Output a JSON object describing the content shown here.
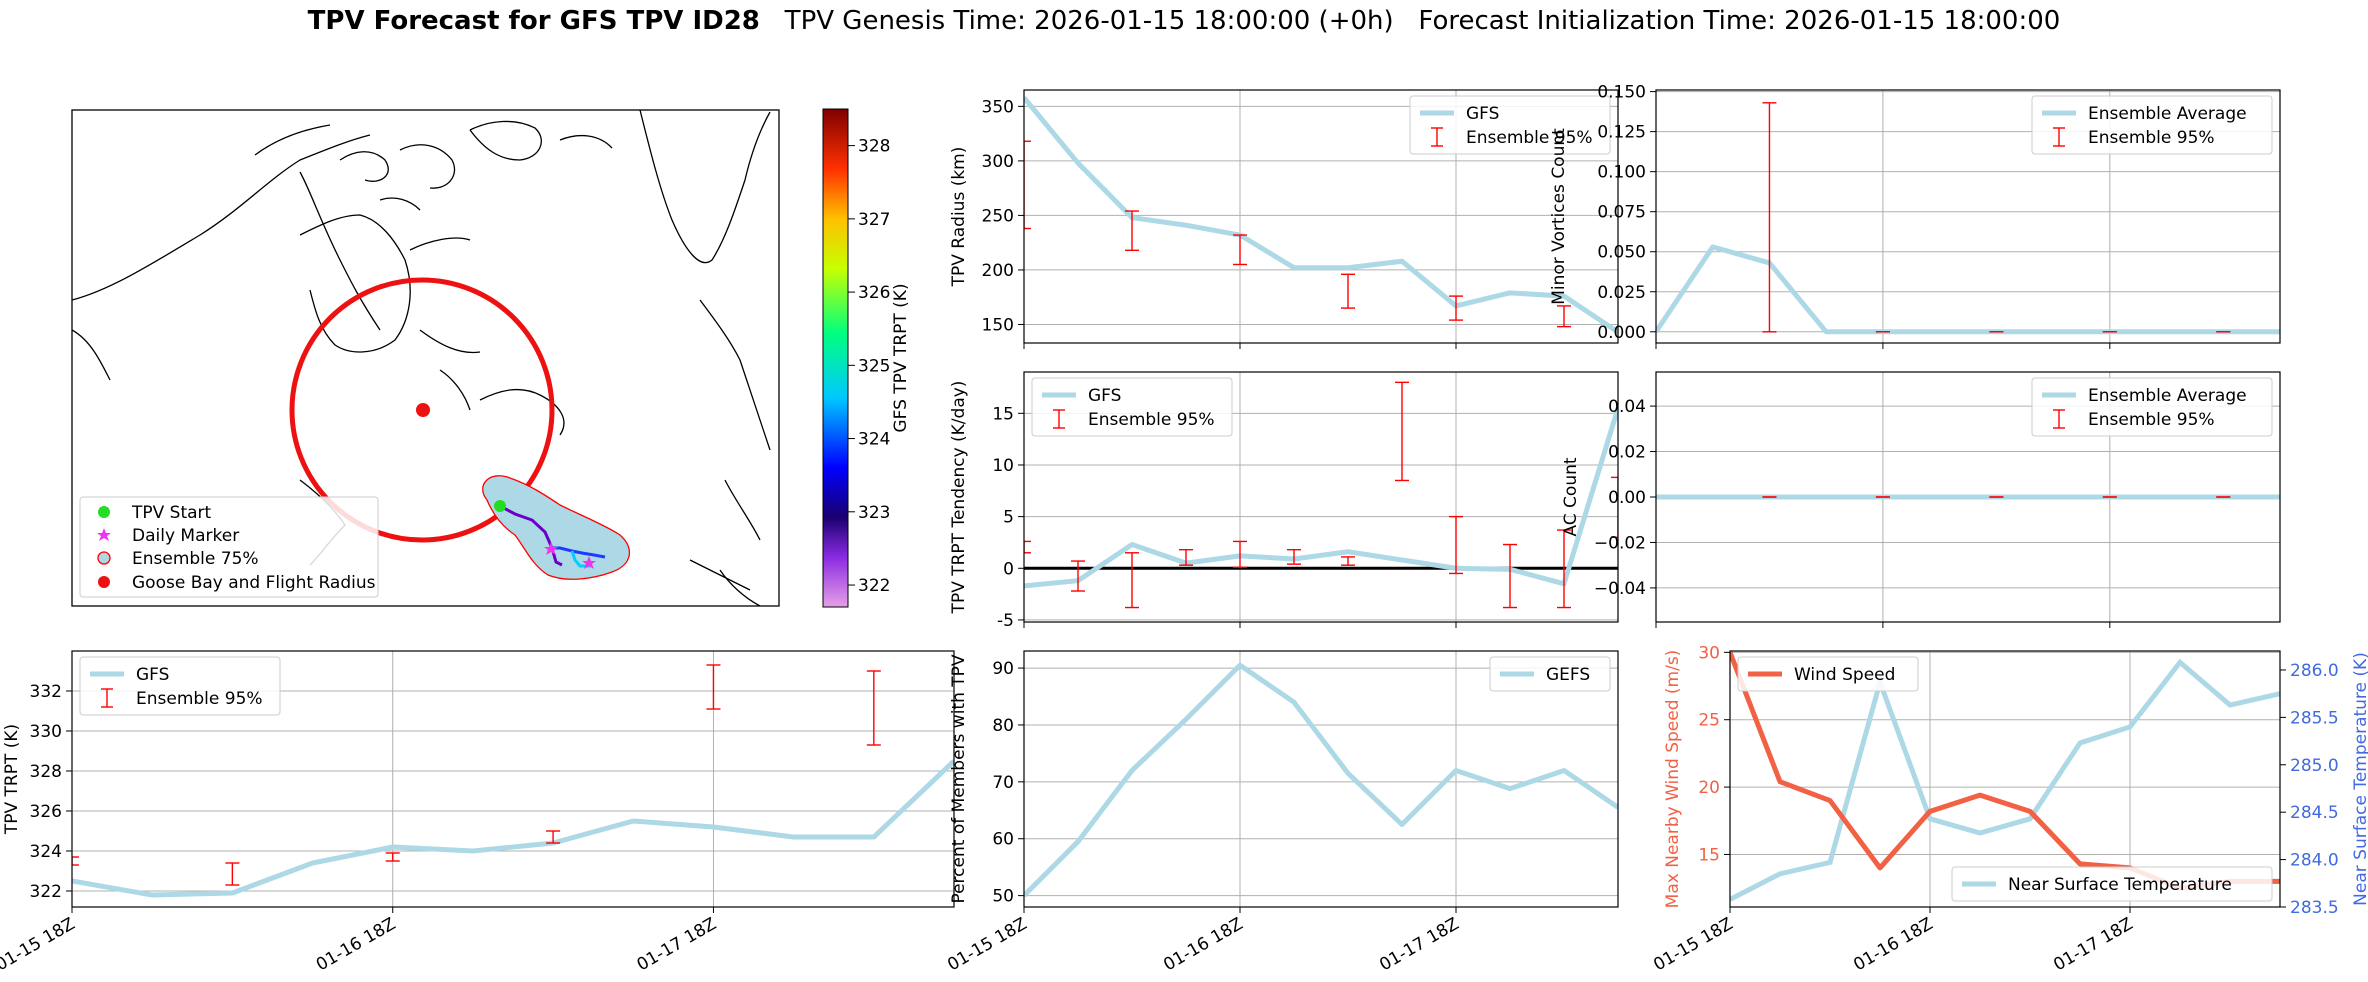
{
  "figure": {
    "title_bold": "TPV Forecast for GFS TPV ID28",
    "title_rest": "   TPV Genesis Time: 2026-01-15 18:00:00 (+0h)   Forecast Initialization Time: 2026-01-15 18:00:00"
  },
  "colors": {
    "gfs_line": "#add8e6",
    "error_bar": "#ff0000",
    "wind_line": "#f26144",
    "temp_axis": "#4169e1",
    "map_circle": "#ee1111"
  },
  "x_ticks": [
    "01-15 18Z",
    "01-16 18Z",
    "01-17 18Z"
  ],
  "map": {
    "legend": [
      "TPV Start",
      "Daily Marker",
      "Ensemble 75%",
      "Goose Bay and Flight Radius"
    ],
    "colorbar": {
      "label": "GFS TPV TRPT (K)",
      "ticks": [
        322,
        323,
        324,
        325,
        326,
        327,
        328
      ],
      "range": [
        321.7,
        328.5
      ]
    }
  },
  "chart_data": [
    {
      "id": "trpt",
      "type": "line",
      "ylabel": "TPV TRPT (K)",
      "ylim": [
        321.2,
        334.0
      ],
      "yticks": [
        322,
        324,
        326,
        328,
        330,
        332
      ],
      "xlim": [
        0,
        66
      ],
      "legend": [
        "GFS",
        "Ensemble 95%"
      ],
      "legend_position": "upper-left",
      "x": [
        0,
        6,
        12,
        18,
        24,
        30,
        36,
        42,
        48,
        54,
        60,
        66
      ],
      "values": [
        322.5,
        321.8,
        321.9,
        323.4,
        324.2,
        324.0,
        324.4,
        325.5,
        325.2,
        324.7,
        324.7,
        328.5
      ],
      "errorbars": [
        {
          "x": 0,
          "low": 323.3,
          "high": 323.7
        },
        {
          "x": 12,
          "low": 322.3,
          "high": 323.4
        },
        {
          "x": 24,
          "low": 323.5,
          "high": 323.9
        },
        {
          "x": 36,
          "low": 324.4,
          "high": 325.0
        },
        {
          "x": 48,
          "low": 331.1,
          "high": 333.3
        },
        {
          "x": 60,
          "low": 329.3,
          "high": 333.0
        }
      ]
    },
    {
      "id": "radius",
      "type": "line",
      "ylabel": "TPV Radius (km)",
      "ylim": [
        133,
        365
      ],
      "yticks": [
        150,
        200,
        250,
        300,
        350
      ],
      "xlim": [
        0,
        66
      ],
      "legend": [
        "GFS",
        "Ensemble 95%"
      ],
      "legend_position": "upper-right",
      "x": [
        0,
        6,
        12,
        18,
        24,
        30,
        36,
        42,
        48,
        54,
        60,
        66
      ],
      "values": [
        358,
        298,
        248,
        241,
        232,
        202,
        202,
        208,
        167,
        179,
        176,
        143
      ],
      "errorbars": [
        {
          "x": 0,
          "low": 238,
          "high": 318
        },
        {
          "x": 12,
          "low": 218,
          "high": 254
        },
        {
          "x": 24,
          "low": 205,
          "high": 232
        },
        {
          "x": 36,
          "low": 165,
          "high": 196
        },
        {
          "x": 48,
          "low": 154,
          "high": 176
        },
        {
          "x": 60,
          "low": 148,
          "high": 167
        }
      ]
    },
    {
      "id": "tendency",
      "type": "line",
      "ylabel": "TPV TRPT Tendency (K/day)",
      "ylim": [
        -5.2,
        19.0
      ],
      "yticks": [
        -5,
        0,
        5,
        10,
        15
      ],
      "xlim": [
        0,
        66
      ],
      "legend": [
        "GFS",
        "Ensemble 95%"
      ],
      "legend_position": "upper-left",
      "zero_line": true,
      "x": [
        0,
        6,
        12,
        18,
        24,
        30,
        36,
        42,
        48,
        54,
        60,
        66
      ],
      "values": [
        -1.7,
        -1.2,
        2.3,
        0.5,
        1.2,
        0.9,
        1.6,
        0.8,
        0.0,
        -0.1,
        -1.5,
        15.5
      ],
      "errorbars": [
        {
          "x": 0,
          "low": 1.5,
          "high": 2.6
        },
        {
          "x": 6,
          "low": -2.2,
          "high": 0.7
        },
        {
          "x": 12,
          "low": -3.8,
          "high": 1.5
        },
        {
          "x": 18,
          "low": 0.3,
          "high": 1.8
        },
        {
          "x": 24,
          "low": 0.1,
          "high": 2.6
        },
        {
          "x": 30,
          "low": 0.4,
          "high": 1.8
        },
        {
          "x": 36,
          "low": 0.3,
          "high": 1.1
        },
        {
          "x": 42,
          "low": 8.5,
          "high": 18.0
        },
        {
          "x": 48,
          "low": -0.5,
          "high": 5.0
        },
        {
          "x": 54,
          "low": -3.8,
          "high": 2.3
        },
        {
          "x": 60,
          "low": -3.8,
          "high": 3.7
        },
        {
          "x": 66,
          "low": 3.0,
          "high": 8.8
        }
      ]
    },
    {
      "id": "members",
      "type": "line",
      "ylabel": "Percent of Members with TPV",
      "ylim": [
        48,
        93
      ],
      "yticks": [
        50,
        60,
        70,
        80,
        90
      ],
      "xlim": [
        0,
        66
      ],
      "legend": [
        "GEFS"
      ],
      "legend_position": "upper-right",
      "x": [
        0,
        6,
        12,
        18,
        24,
        30,
        36,
        42,
        48,
        54,
        60,
        66
      ],
      "values": [
        50,
        59.5,
        72,
        81,
        90.5,
        84,
        71.5,
        62.5,
        72,
        68.8,
        72,
        65.5
      ],
      "errorbars": []
    },
    {
      "id": "minor",
      "type": "line",
      "ylabel": "Minor Vortices Count",
      "ylim": [
        -0.007,
        0.151
      ],
      "yticks": [
        0.0,
        0.025,
        0.05,
        0.075,
        0.1,
        0.125,
        0.15
      ],
      "ytick_labels": [
        "0.000",
        "0.025",
        "0.050",
        "0.075",
        "0.100",
        "0.125",
        "0.150"
      ],
      "xlim": [
        0,
        66
      ],
      "legend": [
        "Ensemble Average",
        "Ensemble 95%"
      ],
      "legend_position": "upper-right",
      "x": [
        0,
        6,
        12,
        18,
        24,
        30,
        36,
        42,
        48,
        54,
        60,
        66
      ],
      "values": [
        0.0,
        0.053,
        0.043,
        0.0,
        0.0,
        0.0,
        0.0,
        0.0,
        0.0,
        0.0,
        0.0,
        0.0
      ],
      "errorbars": [
        {
          "x": 12,
          "low": 0.0,
          "high": 0.143
        },
        {
          "x": 24,
          "low": 0.0,
          "high": 0.0
        },
        {
          "x": 36,
          "low": 0.0,
          "high": 0.0
        },
        {
          "x": 48,
          "low": 0.0,
          "high": 0.0
        },
        {
          "x": 60,
          "low": 0.0,
          "high": 0.0
        }
      ]
    },
    {
      "id": "ac",
      "type": "line",
      "ylabel": "AC Count",
      "ylim": [
        -0.055,
        0.055
      ],
      "yticks": [
        -0.04,
        -0.02,
        0.0,
        0.02,
        0.04
      ],
      "ytick_labels": [
        "−0.04",
        "−0.02",
        "0.00",
        "0.02",
        "0.04"
      ],
      "xlim": [
        0,
        66
      ],
      "legend": [
        "Ensemble Average",
        "Ensemble 95%"
      ],
      "legend_position": "upper-right",
      "x": [
        0,
        6,
        12,
        18,
        24,
        30,
        36,
        42,
        48,
        54,
        60,
        66
      ],
      "values": [
        0,
        0,
        0,
        0,
        0,
        0,
        0,
        0,
        0,
        0,
        0,
        0
      ],
      "errorbars": [
        {
          "x": 12,
          "low": 0,
          "high": 0
        },
        {
          "x": 24,
          "low": 0,
          "high": 0
        },
        {
          "x": 36,
          "low": 0,
          "high": 0
        },
        {
          "x": 48,
          "low": 0,
          "high": 0
        },
        {
          "x": 60,
          "low": 0,
          "high": 0
        }
      ]
    },
    {
      "id": "wind_temp",
      "type": "line",
      "ylabel": "Max Nearby Wind Speed (m/s)",
      "ylabel_right": "Near Surface Temperature (K)",
      "ylim": [
        11.1,
        30.1
      ],
      "yticks": [
        15,
        20,
        25,
        30
      ],
      "ylim_right": [
        283.5,
        286.2
      ],
      "yticks_right": [
        283.5,
        284.0,
        284.5,
        285.0,
        285.5,
        286.0
      ],
      "ytick_labels_right": [
        "283.5",
        "284.0",
        "284.5",
        "285.0",
        "285.5",
        "286.0"
      ],
      "xlim": [
        0,
        66
      ],
      "legend": [
        "Wind Speed"
      ],
      "legend_right": [
        "Near Surface Temperature"
      ],
      "x": [
        0,
        6,
        12,
        18,
        24,
        30,
        36,
        42,
        48,
        54,
        60,
        66
      ],
      "values": [
        30,
        20.4,
        19.0,
        14.0,
        18.2,
        19.4,
        18.2,
        14.3,
        14.0,
        12.5,
        13.0,
        13.0
      ],
      "values_right": [
        283.58,
        283.85,
        283.97,
        285.87,
        284.43,
        284.28,
        284.43,
        285.23,
        285.4,
        286.08,
        285.63,
        285.75
      ]
    }
  ]
}
